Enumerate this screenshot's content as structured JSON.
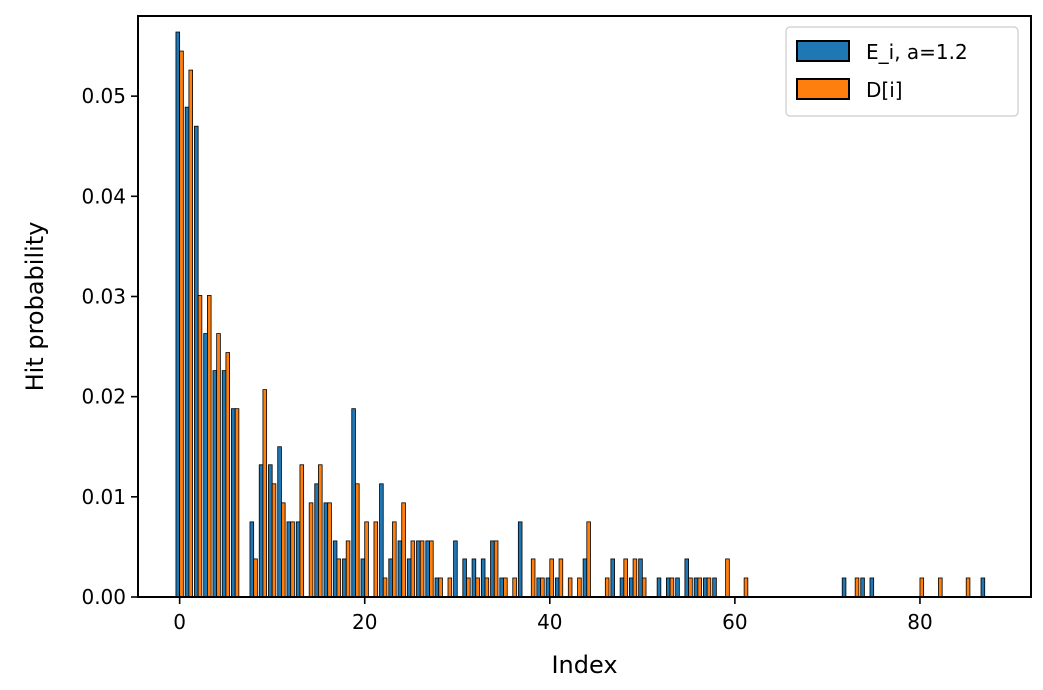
{
  "chart_data": {
    "type": "bar",
    "xlabel": "Index",
    "ylabel": "Hit probability",
    "xlim": [
      -4.5,
      92
    ],
    "ylim": [
      0,
      0.058
    ],
    "x_ticks": [
      0,
      20,
      40,
      60,
      80
    ],
    "y_ticks": [
      0.0,
      0.01,
      0.02,
      0.03,
      0.04,
      0.05
    ],
    "y_tick_format": 2,
    "grid": false,
    "legend_position": "top-right",
    "series": [
      {
        "name": "E_i, a=1.2",
        "color": "#1f77b4",
        "x": [
          0,
          1,
          2,
          3,
          4,
          5,
          6,
          8,
          9,
          10,
          11,
          12,
          13,
          15,
          16,
          17,
          18,
          19,
          20,
          22,
          23,
          24,
          25,
          26,
          27,
          28,
          30,
          31,
          32,
          33,
          34,
          35,
          37,
          39,
          40,
          41,
          44,
          47,
          48,
          49,
          50,
          52,
          53,
          54,
          55,
          56,
          57,
          58,
          72,
          74,
          75,
          87
        ],
        "values": [
          0.0564,
          0.0489,
          0.047,
          0.0263,
          0.0226,
          0.0226,
          0.0188,
          0.0075,
          0.0132,
          0.0132,
          0.015,
          0.0075,
          0.0075,
          0.0113,
          0.0094,
          0.0056,
          0.0038,
          0.0188,
          0.0038,
          0.0113,
          0.0038,
          0.0056,
          0.0038,
          0.0056,
          0.0056,
          0.0019,
          0.0056,
          0.0038,
          0.0038,
          0.0038,
          0.0056,
          0.0019,
          0.0075,
          0.0019,
          0.0019,
          0.0019,
          0.0038,
          0.0038,
          0.0019,
          0.0019,
          0.0038,
          0.0019,
          0.0019,
          0.0019,
          0.0038,
          0.0019,
          0.0019,
          0.0019,
          0.0019,
          0.0019,
          0.0019,
          0.0019
        ]
      },
      {
        "name": "D[i]",
        "color": "#ff7f0e",
        "x": [
          0,
          1,
          2,
          3,
          4,
          5,
          6,
          8,
          9,
          10,
          11,
          12,
          13,
          14,
          15,
          16,
          17,
          18,
          19,
          20,
          21,
          22,
          23,
          24,
          25,
          26,
          27,
          28,
          29,
          31,
          32,
          33,
          34,
          35,
          36,
          38,
          39,
          40,
          41,
          42,
          43,
          44,
          46,
          48,
          49,
          50,
          53,
          55,
          56,
          57,
          59,
          61,
          73,
          80,
          82,
          85
        ],
        "values": [
          0.0545,
          0.0526,
          0.0301,
          0.0301,
          0.0263,
          0.0244,
          0.0188,
          0.0038,
          0.0207,
          0.0113,
          0.0094,
          0.0075,
          0.0132,
          0.0094,
          0.0132,
          0.0094,
          0.0038,
          0.0056,
          0.0113,
          0.0075,
          0.0075,
          0.0019,
          0.0075,
          0.0094,
          0.0056,
          0.0056,
          0.0056,
          0.0019,
          0.0019,
          0.0019,
          0.0019,
          0.0019,
          0.0056,
          0.0019,
          0.0019,
          0.0038,
          0.0019,
          0.0038,
          0.0038,
          0.0019,
          0.0019,
          0.0075,
          0.0019,
          0.0038,
          0.0038,
          0.0019,
          0.0019,
          0.0019,
          0.0019,
          0.0019,
          0.0038,
          0.0019,
          0.0019,
          0.0019,
          0.0019,
          0.0019
        ]
      }
    ]
  }
}
